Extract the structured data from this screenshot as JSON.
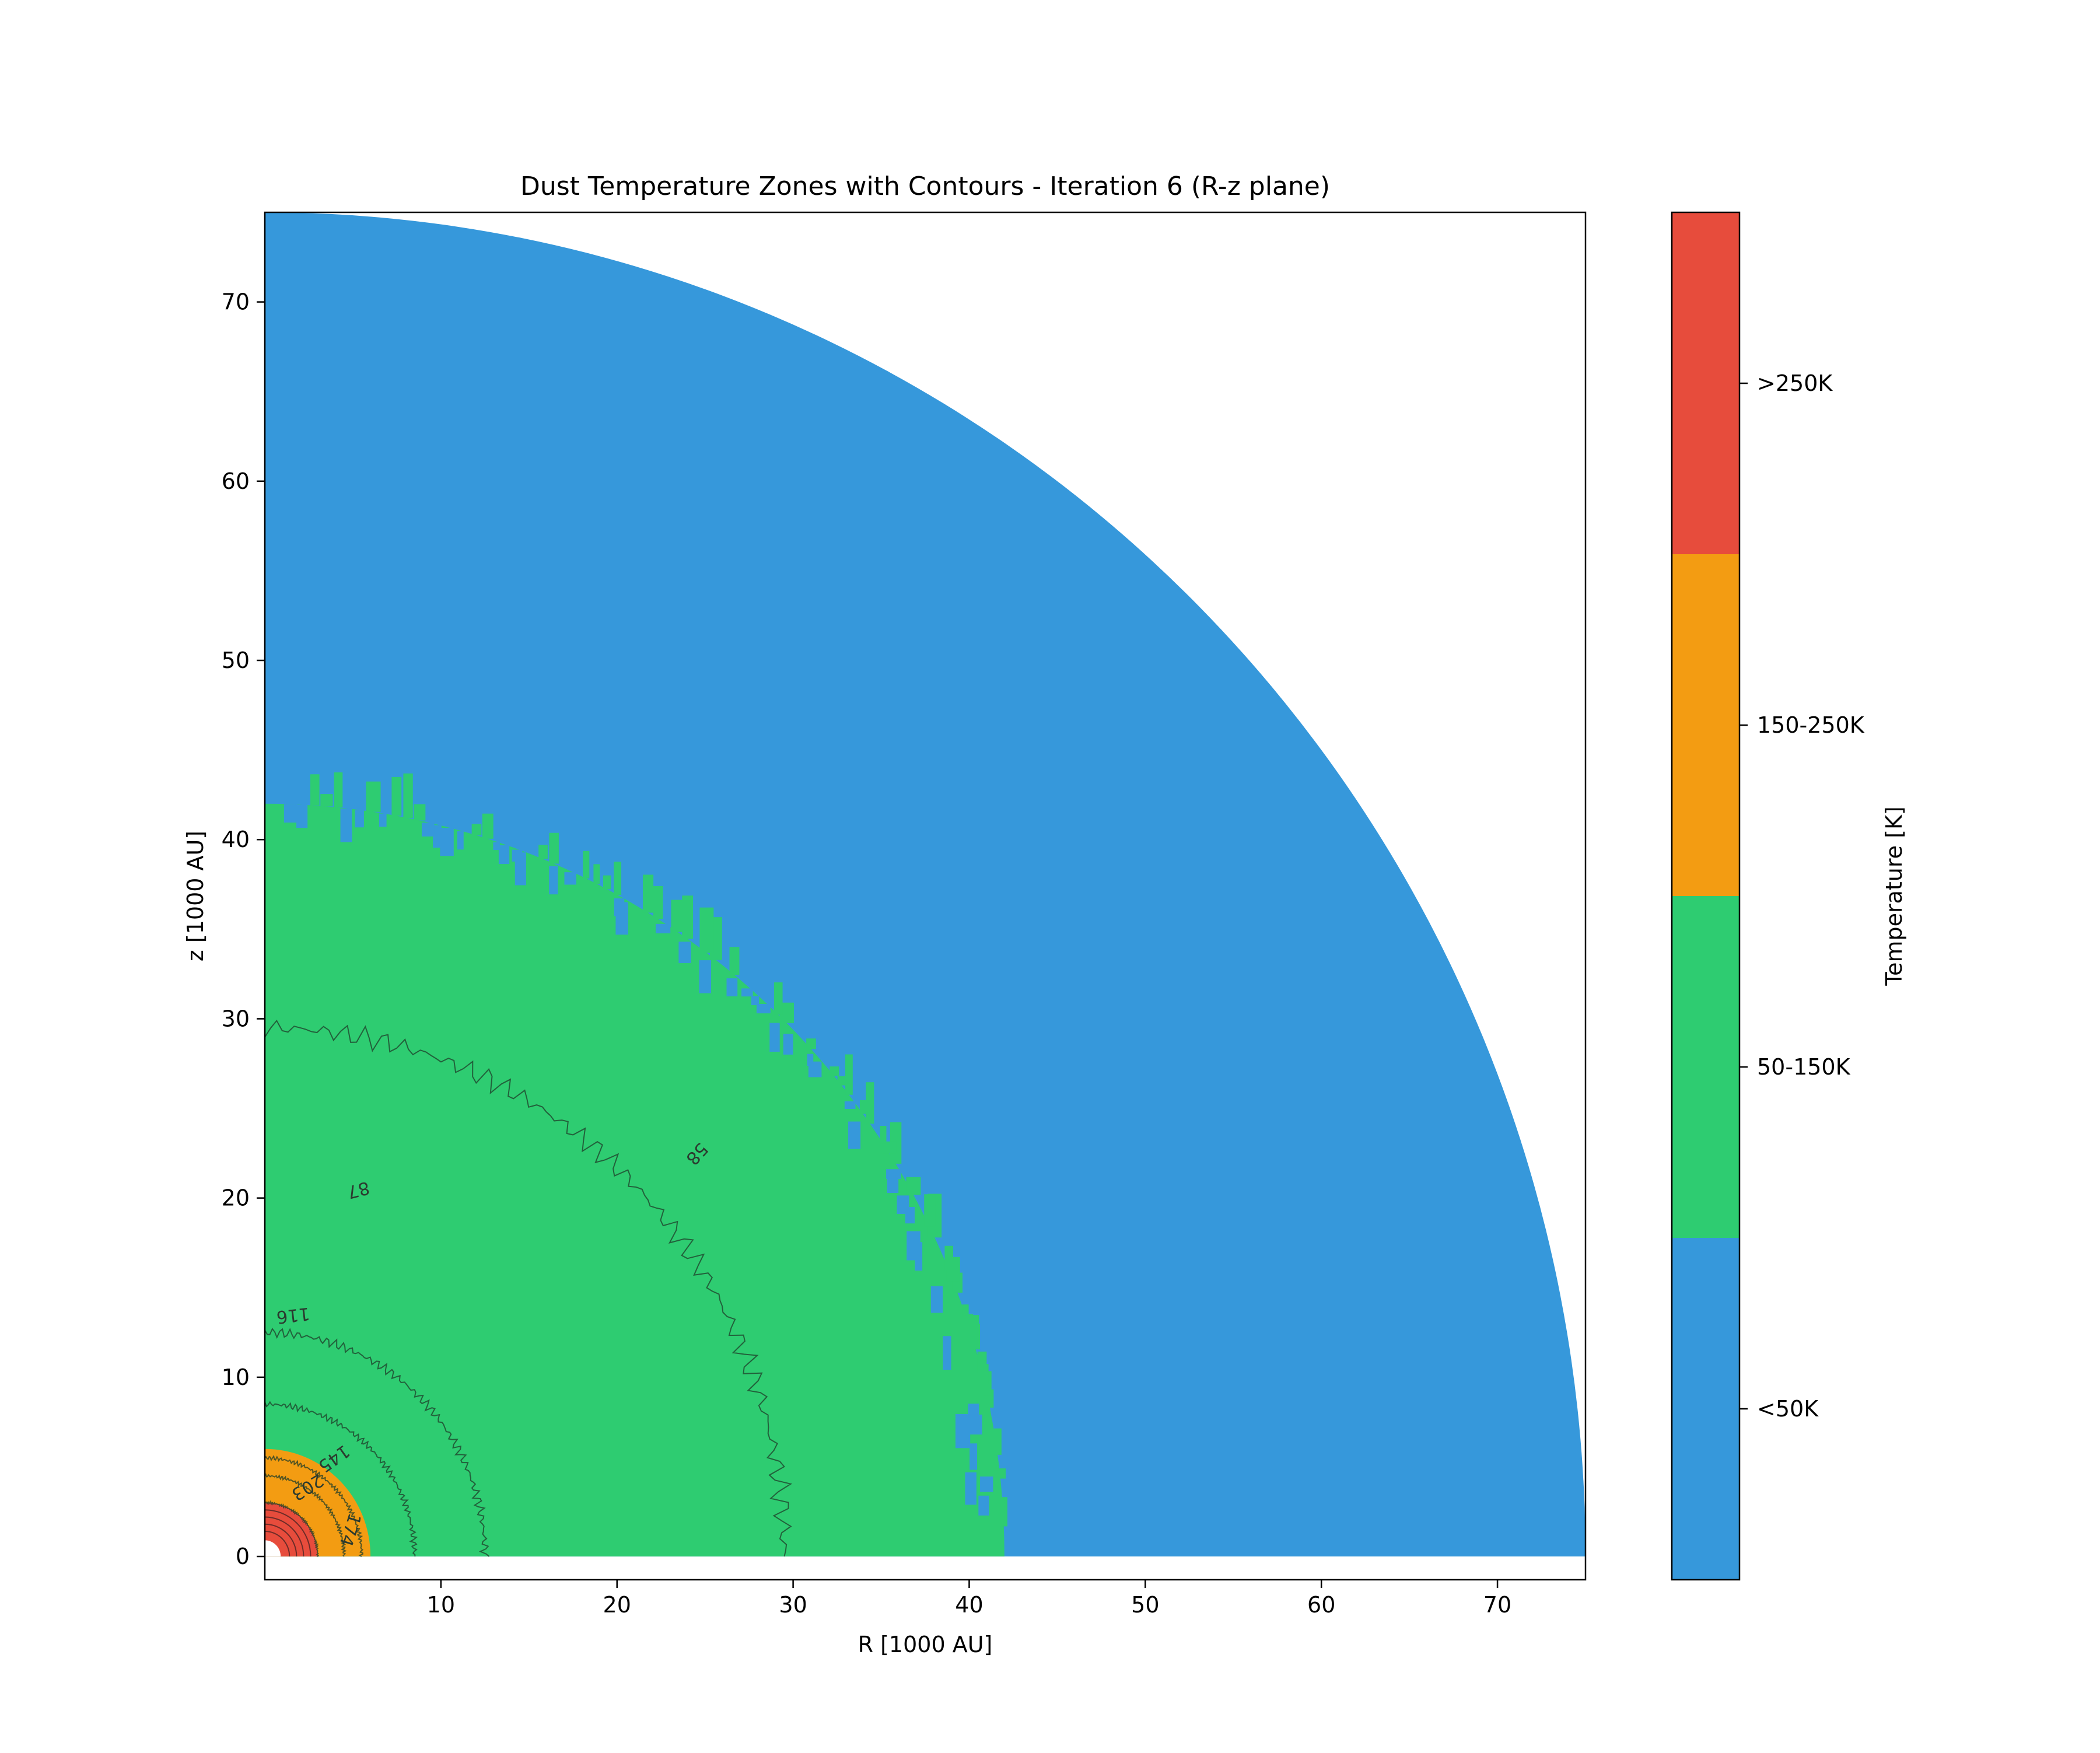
{
  "chart_data": {
    "type": "heatmap",
    "title": "Dust Temperature Zones with Contours - Iteration 6 (R-z plane)",
    "xlabel": "R [1000 AU]",
    "ylabel": "z [1000 AU]",
    "xlim": [
      0,
      75
    ],
    "ylim": [
      -1.3,
      75.0
    ],
    "x_ticks": [
      10,
      20,
      30,
      40,
      50,
      60,
      70
    ],
    "y_ticks": [
      0,
      10,
      20,
      30,
      40,
      50,
      60,
      70
    ],
    "grid": false,
    "domain_shape": "quarter-circle",
    "outer_radius": 75,
    "colorbar": {
      "label": "Temperature [K]",
      "position": "right",
      "zones": [
        {
          "label": "<50K",
          "color": "#3698db"
        },
        {
          "label": "50-150K",
          "color": "#2ecc71"
        },
        {
          "label": "150-250K",
          "color": "#f39c12"
        },
        {
          "label": ">250K",
          "color": "#e74c3c"
        }
      ]
    },
    "zone_boundaries_radius": [
      {
        "zone": "<50K",
        "r_min": 42,
        "r_max": 75,
        "color": "#3698db"
      },
      {
        "zone": "50-150K",
        "r_min": 6,
        "r_max": 42,
        "color": "#2ecc71"
      },
      {
        "zone": "150-250K",
        "r_min": 3,
        "r_max": 6,
        "color": "#f39c12"
      },
      {
        "zone": ">250K",
        "r_min": 0.9,
        "r_max": 3,
        "color": "#e74c3c"
      }
    ],
    "contours": [
      {
        "level": 58,
        "label": "58",
        "radius": 29.5,
        "label_x": 24.5,
        "label_y": 22.5
      },
      {
        "level": 87,
        "label": "87",
        "radius": 12.5,
        "label_x": 5.3,
        "label_y": 20.5
      },
      {
        "level": 116,
        "label": "116",
        "radius": 8.5,
        "label_x": 1.6,
        "label_y": 13.5
      },
      {
        "level": 145,
        "label": "145",
        "radius": 5.5,
        "label_x": 3.9,
        "label_y": 5.5
      },
      {
        "level": 174,
        "label": "174",
        "radius": 4.5,
        "label_x": 4.8,
        "label_y": 1.5
      },
      {
        "level": 203,
        "label": "203",
        "radius": 3.0,
        "label_x": 2.4,
        "label_y": 3.9
      }
    ]
  }
}
